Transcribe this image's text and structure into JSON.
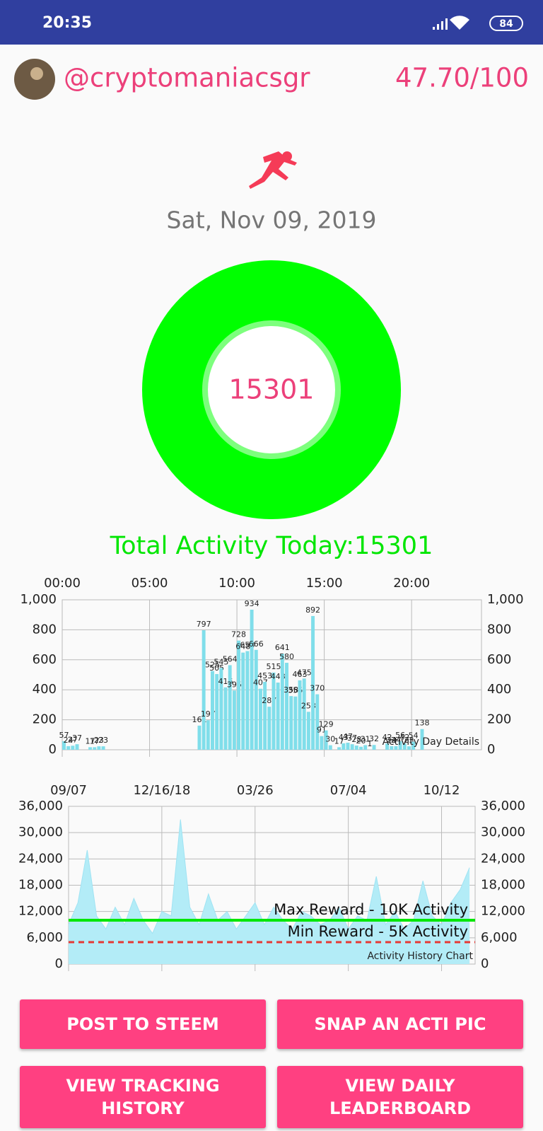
{
  "status_bar": {
    "time": "20:35",
    "battery": "84"
  },
  "header": {
    "username": "@cryptomaniacsgr",
    "score": "47.70/100"
  },
  "date": "Sat, Nov 09, 2019",
  "ring_value": "15301",
  "total_activity": "Total Activity Today:15301",
  "chart_data": [
    {
      "type": "bar",
      "description": "Activity Day Details",
      "color": "#80deea",
      "grid": true,
      "x": [
        0,
        0.25,
        0.5,
        0.75,
        1.5,
        1.75,
        2,
        2.25,
        7.75,
        8,
        8.25,
        8.5,
        8.75,
        9,
        9.25,
        9.5,
        9.75,
        10,
        10.25,
        10.5,
        10.75,
        11,
        11.25,
        11.5,
        11.75,
        12,
        12.25,
        12.5,
        12.75,
        13,
        13.25,
        13.5,
        13.75,
        14,
        14.25,
        14.5,
        14.75,
        15,
        15.25,
        15.75,
        16,
        16.25,
        16.5,
        16.75,
        17,
        17.25,
        17.5,
        17.75,
        18.5,
        18.75,
        19,
        19.25,
        19.5,
        19.75,
        20,
        20.5
      ],
      "values": [
        57,
        24,
        27,
        37,
        17,
        17,
        23,
        23,
        161,
        797,
        197,
        525,
        505,
        545,
        416,
        564,
        395,
        728,
        648,
        658,
        934,
        666,
        407,
        453,
        287,
        515,
        448,
        641,
        580,
        358,
        355,
        463,
        475,
        253,
        892,
        370,
        91,
        129,
        30,
        17,
        43,
        47,
        37,
        28,
        20,
        31,
        1,
        32,
        42,
        24,
        24,
        56,
        42,
        23,
        54,
        138
      ],
      "xlim": [
        0,
        24
      ],
      "xticks": [
        {
          "value": 0,
          "label": "00:00"
        },
        {
          "value": 5,
          "label": "05:00"
        },
        {
          "value": 10,
          "label": "10:00"
        },
        {
          "value": 15,
          "label": "15:00"
        },
        {
          "value": 20,
          "label": "20:00"
        }
      ],
      "ylim": [
        0,
        1000
      ],
      "yticks": [
        0,
        200,
        400,
        600,
        800,
        {
          "value": 1000,
          "label": "1,000"
        }
      ]
    },
    {
      "type": "area",
      "description": "Activity History Chart",
      "color": "#b3ecf7",
      "grid": true,
      "x": [
        0,
        10,
        20,
        30,
        40,
        50,
        60,
        70,
        80,
        90,
        100,
        110,
        120,
        130,
        140,
        150,
        160,
        170,
        180,
        190,
        200,
        210,
        220,
        230,
        240,
        250,
        260,
        270,
        280,
        290,
        300,
        310,
        320,
        330,
        340,
        350,
        360,
        370,
        380,
        390,
        400,
        410,
        420,
        430
      ],
      "values": [
        9000,
        14000,
        26000,
        11000,
        8000,
        13000,
        9000,
        15000,
        10000,
        7000,
        12000,
        11000,
        33000,
        13000,
        9000,
        16000,
        10000,
        12000,
        8000,
        11000,
        14000,
        9000,
        13000,
        10000,
        8000,
        12000,
        11000,
        9000,
        10000,
        13000,
        8000,
        11000,
        10000,
        20000,
        9000,
        12000,
        8000,
        10000,
        19000,
        11000,
        9000,
        14000,
        17000,
        22000
      ],
      "xlim": [
        0,
        436
      ],
      "xticks": [
        {
          "value": 0,
          "label": "09/07"
        },
        {
          "value": 100,
          "label": "12/16/18"
        },
        {
          "value": 200,
          "label": "03/26"
        },
        {
          "value": 300,
          "label": "07/04"
        },
        {
          "value": 400,
          "label": "10/12"
        }
      ],
      "ylim": [
        0,
        36000
      ],
      "yticks": [
        0,
        {
          "value": 6000,
          "label": "6,000"
        },
        {
          "value": 12000,
          "label": "12,000"
        },
        {
          "value": 18000,
          "label": "18,000"
        },
        {
          "value": 24000,
          "label": "24,000"
        },
        {
          "value": 30000,
          "label": "30,000"
        },
        {
          "value": 36000,
          "label": "36,000"
        }
      ],
      "reference_lines": [
        {
          "value": 10000,
          "label": "Max Reward - 10K Activity",
          "color": "#00e600",
          "style": "solid"
        },
        {
          "value": 5000,
          "label": "Min Reward - 5K Activity",
          "color": "#e53935",
          "style": "dashed"
        }
      ]
    }
  ],
  "buttons": [
    "POST TO STEEM",
    "SNAP AN ACTI PIC",
    "VIEW TRACKING HISTORY",
    "VIEW DAILY LEADERBOARD"
  ]
}
